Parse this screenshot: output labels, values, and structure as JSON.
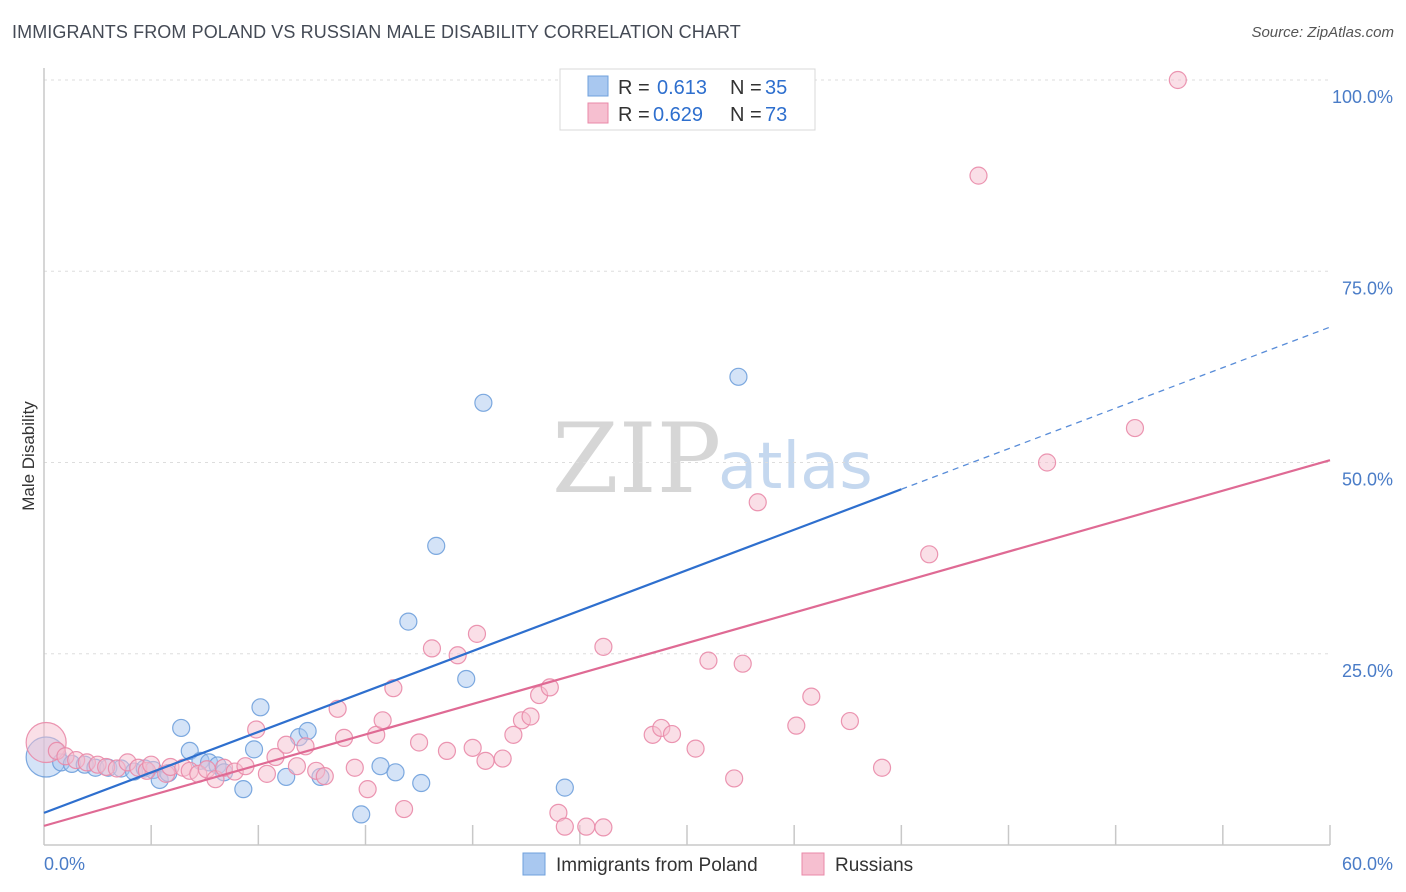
{
  "header": {
    "title": "IMMIGRANTS FROM POLAND VS RUSSIAN MALE DISABILITY CORRELATION CHART",
    "source": "Source: ZipAtlas.com"
  },
  "watermark": {
    "zip": "ZIP",
    "atlas": "atlas"
  },
  "legend_top": {
    "rows": [
      {
        "r_label": "R =",
        "r_value": "0.613",
        "n_label": "N =",
        "n_value": "35"
      },
      {
        "r_label": "R =",
        "r_value": "0.629",
        "n_label": "N =",
        "n_value": "73"
      }
    ]
  },
  "legend_bottom": {
    "items": [
      {
        "label": "Immigrants from Poland"
      },
      {
        "label": "Russians"
      }
    ]
  },
  "chart_data": {
    "type": "scatter",
    "title": "IMMIGRANTS FROM POLAND VS RUSSIAN MALE DISABILITY CORRELATION CHART",
    "xlabel": "",
    "ylabel": "Male Disability",
    "xlim": [
      0,
      60
    ],
    "ylim": [
      0,
      100
    ],
    "x_tick_labels": [
      {
        "value": 0,
        "label": "0.0%"
      },
      {
        "value": 60,
        "label": "60.0%"
      }
    ],
    "y_tick_labels": [
      {
        "value": 25,
        "label": "25.0%"
      },
      {
        "value": 50,
        "label": "50.0%"
      },
      {
        "value": 75,
        "label": "75.0%"
      },
      {
        "value": 100,
        "label": "100.0%"
      }
    ],
    "series": [
      {
        "name": "Immigrants from Poland",
        "color": "#6fa0dc",
        "fill": "#a9c8f0",
        "R": 0.613,
        "N": 35,
        "trend": {
          "x0": 0,
          "y0": 4.2,
          "x1": 40,
          "y1": 46.5,
          "dash_x1": 60,
          "dash_y1": 67.7,
          "color": "#2e6fce"
        },
        "points": [
          {
            "x": 0.1,
            "y": 11.5,
            "big": true
          },
          {
            "x": 0.8,
            "y": 10.8
          },
          {
            "x": 1.3,
            "y": 10.6
          },
          {
            "x": 1.9,
            "y": 10.5
          },
          {
            "x": 2.4,
            "y": 10.1
          },
          {
            "x": 3.0,
            "y": 10.1
          },
          {
            "x": 3.6,
            "y": 10.0
          },
          {
            "x": 4.2,
            "y": 9.6
          },
          {
            "x": 4.7,
            "y": 10.0
          },
          {
            "x": 5.1,
            "y": 9.8
          },
          {
            "x": 5.4,
            "y": 8.5
          },
          {
            "x": 5.8,
            "y": 9.4
          },
          {
            "x": 6.4,
            "y": 15.3
          },
          {
            "x": 6.8,
            "y": 12.3
          },
          {
            "x": 7.3,
            "y": 11.0
          },
          {
            "x": 7.7,
            "y": 10.8
          },
          {
            "x": 8.1,
            "y": 10.4
          },
          {
            "x": 8.4,
            "y": 9.5
          },
          {
            "x": 9.3,
            "y": 7.3
          },
          {
            "x": 9.8,
            "y": 12.5
          },
          {
            "x": 10.1,
            "y": 18.0
          },
          {
            "x": 11.3,
            "y": 8.9
          },
          {
            "x": 11.9,
            "y": 14.1
          },
          {
            "x": 12.3,
            "y": 14.9
          },
          {
            "x": 12.9,
            "y": 8.9
          },
          {
            "x": 14.8,
            "y": 4.0
          },
          {
            "x": 15.7,
            "y": 10.3
          },
          {
            "x": 16.4,
            "y": 9.5
          },
          {
            "x": 17.0,
            "y": 29.2
          },
          {
            "x": 17.6,
            "y": 8.1
          },
          {
            "x": 18.3,
            "y": 39.1
          },
          {
            "x": 19.7,
            "y": 21.7
          },
          {
            "x": 20.5,
            "y": 57.8
          },
          {
            "x": 24.3,
            "y": 7.5
          },
          {
            "x": 32.4,
            "y": 61.2
          }
        ]
      },
      {
        "name": "Russians",
        "color": "#e98aa8",
        "fill": "#f6bfd0",
        "R": 0.629,
        "N": 73,
        "trend": {
          "x0": 0,
          "y0": 2.5,
          "x1": 60,
          "y1": 50.3,
          "color": "#df6a94"
        },
        "points": [
          {
            "x": 0.1,
            "y": 13.4,
            "big": true
          },
          {
            "x": 0.6,
            "y": 12.3
          },
          {
            "x": 1.0,
            "y": 11.6
          },
          {
            "x": 1.5,
            "y": 11.1
          },
          {
            "x": 2.0,
            "y": 10.8
          },
          {
            "x": 2.5,
            "y": 10.5
          },
          {
            "x": 2.9,
            "y": 10.2
          },
          {
            "x": 3.4,
            "y": 10.0
          },
          {
            "x": 3.9,
            "y": 10.8
          },
          {
            "x": 4.4,
            "y": 10.1
          },
          {
            "x": 4.8,
            "y": 9.7
          },
          {
            "x": 5.0,
            "y": 10.5
          },
          {
            "x": 5.7,
            "y": 9.3
          },
          {
            "x": 5.9,
            "y": 10.2
          },
          {
            "x": 6.5,
            "y": 10.1
          },
          {
            "x": 6.8,
            "y": 9.7
          },
          {
            "x": 7.2,
            "y": 9.3
          },
          {
            "x": 7.6,
            "y": 9.9
          },
          {
            "x": 8.0,
            "y": 8.6
          },
          {
            "x": 8.4,
            "y": 10.1
          },
          {
            "x": 8.9,
            "y": 9.6
          },
          {
            "x": 9.4,
            "y": 10.3
          },
          {
            "x": 9.9,
            "y": 15.1
          },
          {
            "x": 10.4,
            "y": 9.3
          },
          {
            "x": 10.8,
            "y": 11.5
          },
          {
            "x": 11.3,
            "y": 13.1
          },
          {
            "x": 11.8,
            "y": 10.3
          },
          {
            "x": 12.2,
            "y": 12.9
          },
          {
            "x": 12.7,
            "y": 9.7
          },
          {
            "x": 13.1,
            "y": 9.0
          },
          {
            "x": 13.7,
            "y": 17.8
          },
          {
            "x": 14.0,
            "y": 14.0
          },
          {
            "x": 14.5,
            "y": 10.1
          },
          {
            "x": 15.1,
            "y": 7.3
          },
          {
            "x": 15.5,
            "y": 14.4
          },
          {
            "x": 15.8,
            "y": 16.3
          },
          {
            "x": 16.3,
            "y": 20.5
          },
          {
            "x": 16.8,
            "y": 4.7
          },
          {
            "x": 17.5,
            "y": 13.4
          },
          {
            "x": 18.1,
            "y": 25.7
          },
          {
            "x": 18.8,
            "y": 12.3
          },
          {
            "x": 19.3,
            "y": 24.8
          },
          {
            "x": 20.0,
            "y": 12.7
          },
          {
            "x": 20.2,
            "y": 27.6
          },
          {
            "x": 20.6,
            "y": 11.0
          },
          {
            "x": 21.4,
            "y": 11.3
          },
          {
            "x": 21.9,
            "y": 14.4
          },
          {
            "x": 22.3,
            "y": 16.3
          },
          {
            "x": 22.7,
            "y": 16.8
          },
          {
            "x": 23.1,
            "y": 19.6
          },
          {
            "x": 23.6,
            "y": 20.6
          },
          {
            "x": 24.0,
            "y": 4.2
          },
          {
            "x": 24.3,
            "y": 2.4
          },
          {
            "x": 25.3,
            "y": 2.4
          },
          {
            "x": 26.1,
            "y": 2.3
          },
          {
            "x": 26.1,
            "y": 25.9
          },
          {
            "x": 28.4,
            "y": 14.4
          },
          {
            "x": 28.8,
            "y": 15.3
          },
          {
            "x": 29.3,
            "y": 14.5
          },
          {
            "x": 30.4,
            "y": 12.6
          },
          {
            "x": 31.0,
            "y": 24.1
          },
          {
            "x": 32.2,
            "y": 8.7
          },
          {
            "x": 32.6,
            "y": 23.7
          },
          {
            "x": 33.3,
            "y": 44.8
          },
          {
            "x": 35.1,
            "y": 15.6
          },
          {
            "x": 35.8,
            "y": 19.4
          },
          {
            "x": 37.6,
            "y": 16.2
          },
          {
            "x": 39.1,
            "y": 10.1
          },
          {
            "x": 41.3,
            "y": 38.0
          },
          {
            "x": 43.6,
            "y": 87.5
          },
          {
            "x": 46.8,
            "y": 50.0
          },
          {
            "x": 50.9,
            "y": 54.5
          },
          {
            "x": 52.9,
            "y": 100.0
          }
        ]
      }
    ]
  }
}
